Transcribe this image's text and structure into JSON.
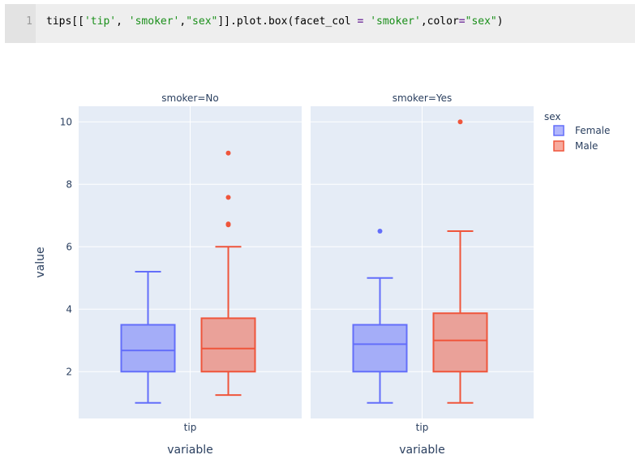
{
  "code_cell": {
    "line_number": "1",
    "tokens": [
      {
        "text": "tips[[",
        "kind": "plain"
      },
      {
        "text": "'tip'",
        "kind": "str"
      },
      {
        "text": ", ",
        "kind": "plain"
      },
      {
        "text": "'smoker'",
        "kind": "str"
      },
      {
        "text": ",",
        "kind": "plain"
      },
      {
        "text": "\"sex\"",
        "kind": "str"
      },
      {
        "text": "]].plot.box(facet_col ",
        "kind": "plain"
      },
      {
        "text": "=",
        "kind": "op"
      },
      {
        "text": " ",
        "kind": "plain"
      },
      {
        "text": "'smoker'",
        "kind": "str"
      },
      {
        "text": ",color",
        "kind": "plain"
      },
      {
        "text": "=",
        "kind": "op"
      },
      {
        "text": "\"sex\"",
        "kind": "str"
      },
      {
        "text": ")",
        "kind": "plain"
      }
    ]
  },
  "chart_data": {
    "type": "box",
    "ylabel": "value",
    "xlabel": "variable",
    "ylim": [
      0.5,
      10.5
    ],
    "yticks": [
      2,
      4,
      6,
      8,
      10
    ],
    "grid": true,
    "legend": {
      "title": "sex",
      "placement": "top-right",
      "entries": [
        {
          "name": "Female",
          "color": "#636efa"
        },
        {
          "name": "Male",
          "color": "#ef553b"
        }
      ]
    },
    "facets": [
      {
        "title": "smoker=No",
        "category": "tip",
        "boxes": [
          {
            "series": "Female",
            "color": "#636efa",
            "whisker_low": 1.0,
            "q1": 2.0,
            "median": 2.68,
            "q3": 3.5,
            "whisker_high": 5.2,
            "outliers": []
          },
          {
            "series": "Male",
            "color": "#ef553b",
            "whisker_low": 1.25,
            "q1": 2.0,
            "median": 2.74,
            "q3": 3.71,
            "whisker_high": 6.0,
            "outliers": [
              6.7,
              6.73,
              7.58,
              9.0
            ]
          }
        ]
      },
      {
        "title": "smoker=Yes",
        "category": "tip",
        "boxes": [
          {
            "series": "Female",
            "color": "#636efa",
            "whisker_low": 1.0,
            "q1": 2.0,
            "median": 2.88,
            "q3": 3.5,
            "whisker_high": 5.0,
            "outliers": [
              6.5
            ]
          },
          {
            "series": "Male",
            "color": "#ef553b",
            "whisker_low": 1.0,
            "q1": 2.0,
            "median": 3.0,
            "q3": 3.87,
            "whisker_high": 6.5,
            "outliers": [
              10.0
            ]
          }
        ]
      }
    ]
  }
}
